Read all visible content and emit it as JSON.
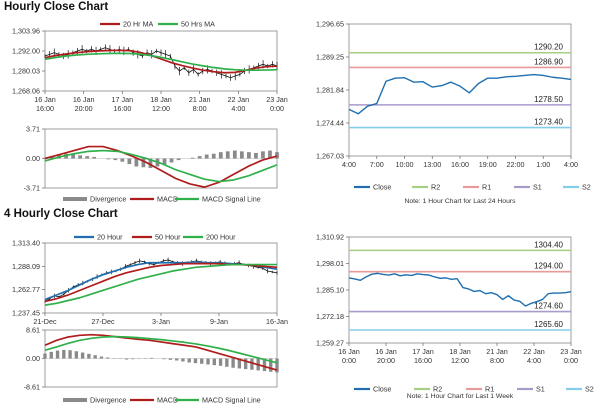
{
  "sections": [
    {
      "title": "Hourly Close Chart"
    },
    {
      "title": "4 Hourly Close Chart"
    }
  ],
  "colors": {
    "red": "#b01c1c",
    "green": "#2fb04a",
    "black": "#111111",
    "gray": "#8a8a8a",
    "blue": "#1f6fb0",
    "r2": "#a6cf82",
    "r1": "#e89a9a",
    "s1": "#a89ac9",
    "s2": "#86cdeb"
  },
  "chart_data": [
    {
      "id": "h_price",
      "type": "line",
      "ylim": [
        1268.06,
        1303.96
      ],
      "yticks": [
        "1,303.96",
        "1,292.00",
        "1,280.03",
        "1,268.06"
      ],
      "xticks": [
        "16 Jan\n16:00",
        "16 Jan\n20:00",
        "17 Jan\n16:00",
        "18 Jan\n12:00",
        "21 Jan\n8:00",
        "22 Jan\n4:00",
        "23 Jan\n0:00"
      ],
      "legend": [
        "20 Hr MA",
        "50 Hrs MA"
      ],
      "series": [
        {
          "name": "Price",
          "color": "black",
          "kind": "ohlc",
          "values": [
            1289,
            1290,
            1291,
            1290,
            1289,
            1290,
            1291,
            1292,
            1293,
            1292,
            1293,
            1292,
            1293,
            1294,
            1293,
            1292,
            1293,
            1292,
            1293,
            1291,
            1290,
            1289,
            1291,
            1290,
            1292,
            1291,
            1290,
            1289,
            1283,
            1280,
            1282,
            1279,
            1281,
            1278,
            1280,
            1281,
            1280,
            1279,
            1278,
            1277,
            1276,
            1277,
            1278,
            1280,
            1281,
            1282,
            1283,
            1284,
            1283,
            1284,
            1283
          ]
        },
        {
          "name": "20 Hr MA",
          "color": "red",
          "kind": "line",
          "values": [
            1288,
            1289.3,
            1290.2,
            1291,
            1291.6,
            1292,
            1292.3,
            1292.4,
            1292.2,
            1291.2,
            1289.5,
            1287.2,
            1285,
            1283.3,
            1281.8,
            1280.5,
            1279.6,
            1279,
            1279.2,
            1280.4,
            1281.8,
            1282.6,
            1282.9
          ]
        },
        {
          "name": "50 Hrs MA",
          "color": "green",
          "kind": "line",
          "values": [
            1287,
            1288.1,
            1289,
            1289.6,
            1290,
            1290.3,
            1290.5,
            1290.6,
            1290.5,
            1290.1,
            1289.3,
            1288.2,
            1286.9,
            1285.5,
            1284.2,
            1283.1,
            1282.1,
            1281.3,
            1280.8,
            1280.5,
            1280.5,
            1280.6,
            1280.8
          ]
        }
      ]
    },
    {
      "id": "h_macd",
      "type": "line",
      "ylim": [
        -3.71,
        3.71
      ],
      "yticks": [
        "3.71",
        "0.00",
        "-3.71"
      ],
      "legend": [
        "Divergence",
        "MACD",
        "MACD Signal Line"
      ],
      "series": [
        {
          "name": "Divergence",
          "color": "gray",
          "kind": "bars",
          "values": [
            0.1,
            0.3,
            0.5,
            0.6,
            0.5,
            0.4,
            0.3,
            0.2,
            0.0,
            -0.1,
            -0.2,
            -0.4,
            -0.7,
            -1.0,
            -1.1,
            -1.2,
            -1.0,
            -0.8,
            -0.5,
            -0.2,
            0.0,
            0.1,
            0.3,
            0.5,
            0.6,
            0.8,
            0.9,
            1.0,
            0.9,
            0.8,
            0.7,
            0.9,
            1.0,
            0.8
          ]
        },
        {
          "name": "MACD",
          "color": "red",
          "kind": "line",
          "values": [
            0.0,
            0.5,
            1.0,
            1.5,
            1.5,
            1.0,
            0.3,
            -0.5,
            -1.5,
            -2.5,
            -3.2,
            -3.6,
            -3.0,
            -2.0,
            -1.0,
            -0.2,
            0.3
          ]
        },
        {
          "name": "MACD Signal Line",
          "color": "green",
          "kind": "line",
          "values": [
            -0.3,
            0.2,
            0.6,
            0.9,
            1.0,
            0.9,
            0.5,
            0.0,
            -0.6,
            -1.4,
            -2.0,
            -2.6,
            -2.9,
            -2.7,
            -2.2,
            -1.5,
            -0.8
          ]
        }
      ]
    },
    {
      "id": "h_right",
      "type": "line",
      "ylim": [
        1267.03,
        1296.65
      ],
      "yticks": [
        "1,296.65",
        "1,289.25",
        "1,281.84",
        "1,274.44",
        "1,267.03"
      ],
      "xticks": [
        "4:00",
        "7:00",
        "10:00",
        "13:00",
        "16:00",
        "19:00",
        "22:00",
        "1:00",
        "4:00"
      ],
      "legend": [
        "Close",
        "R2",
        "R1",
        "S1",
        "S2"
      ],
      "note": "Note: 1 Hour Chart for Last 24 Hours",
      "levels": [
        {
          "name": "R2",
          "value": 1290.2,
          "label": "1290.20",
          "color": "r2"
        },
        {
          "name": "R1",
          "value": 1286.9,
          "label": "1286.90",
          "color": "r1"
        },
        {
          "name": "S1",
          "value": 1278.5,
          "label": "1278.50",
          "color": "s1"
        },
        {
          "name": "S2",
          "value": 1273.4,
          "label": "1273.40",
          "color": "s2"
        }
      ],
      "series": [
        {
          "name": "Close",
          "color": "blue",
          "kind": "line",
          "values": [
            1277.5,
            1276.5,
            1278.2,
            1278.8,
            1283.8,
            1284.5,
            1284.6,
            1283.6,
            1283.7,
            1282.5,
            1282.8,
            1283.6,
            1282.7,
            1281.2,
            1283.3,
            1284.5,
            1284.5,
            1284.8,
            1284.9,
            1285.1,
            1285.3,
            1285.1,
            1284.7,
            1284.5,
            1284.2
          ]
        }
      ]
    },
    {
      "id": "h4_price",
      "type": "line",
      "ylim": [
        1237.45,
        1313.4
      ],
      "yticks": [
        "1,313.40",
        "1,288.09",
        "1,262.77",
        "1,237.45"
      ],
      "xticks": [
        "21-Dec",
        "27-Dec",
        "3-Jan",
        "9-Jan",
        "16-Jan"
      ],
      "legend": [
        "20 Hour",
        "50 Hour",
        "200 Hour"
      ],
      "series": [
        {
          "name": "Price",
          "color": "black",
          "kind": "ohlc",
          "values": [
            1250,
            1253,
            1256,
            1255,
            1258,
            1262,
            1266,
            1268,
            1270,
            1272,
            1274,
            1277,
            1279,
            1281,
            1282,
            1283,
            1285,
            1288,
            1290,
            1292,
            1294,
            1293,
            1291,
            1290,
            1292,
            1294,
            1295,
            1293,
            1292,
            1291,
            1292,
            1293,
            1294,
            1293,
            1292,
            1291,
            1292,
            1293,
            1291,
            1290,
            1291,
            1292,
            1290,
            1289,
            1288,
            1287,
            1286,
            1283,
            1282,
            1281
          ]
        },
        {
          "name": "20 Hour",
          "color": "blue",
          "kind": "line",
          "values": [
            1252,
            1257,
            1262,
            1268,
            1274,
            1279,
            1283,
            1287,
            1290,
            1292,
            1292,
            1292,
            1292,
            1293,
            1292,
            1292,
            1291,
            1290,
            1289,
            1287,
            1285
          ]
        },
        {
          "name": "50 Hour",
          "color": "red",
          "kind": "line",
          "values": [
            1250,
            1253,
            1257,
            1262,
            1267,
            1272,
            1277,
            1281,
            1284,
            1287,
            1289,
            1290,
            1291,
            1291,
            1291,
            1291,
            1290,
            1290,
            1289,
            1288,
            1287
          ]
        },
        {
          "name": "200 Hour",
          "color": "green",
          "kind": "line",
          "values": [
            1246,
            1248,
            1251,
            1254,
            1258,
            1262,
            1266,
            1270,
            1274,
            1277,
            1280,
            1283,
            1285,
            1287,
            1288,
            1289,
            1290,
            1290,
            1290,
            1290,
            1290
          ]
        }
      ]
    },
    {
      "id": "h4_macd",
      "type": "line",
      "ylim": [
        -8.61,
        8.61
      ],
      "yticks": [
        "8.61",
        "0.00",
        "-8.61"
      ],
      "legend": [
        "Divergence",
        "MACD",
        "MACD Signal Line"
      ],
      "series": [
        {
          "name": "Divergence",
          "color": "gray",
          "kind": "bars",
          "values": [
            1.5,
            2.0,
            2.4,
            2.6,
            2.5,
            2.2,
            1.8,
            1.4,
            1.0,
            0.6,
            0.3,
            0.1,
            -0.1,
            -0.3,
            -0.2,
            -0.1,
            0.1,
            0.2,
            0.0,
            -0.2,
            -0.4,
            -0.6,
            -0.9,
            -1.2,
            -1.4,
            -1.6,
            -1.8,
            -2.0,
            -2.2,
            -2.5,
            -2.8,
            -3.0,
            -3.2,
            -3.4,
            -3.6,
            -3.8,
            -4.0,
            -4.2
          ]
        },
        {
          "name": "MACD",
          "color": "red",
          "kind": "line",
          "values": [
            4.0,
            5.5,
            6.5,
            7.0,
            7.2,
            7.0,
            6.6,
            6.2,
            5.8,
            5.5,
            5.0,
            4.5,
            4.0,
            3.5,
            2.5,
            1.5,
            0.5,
            -0.5,
            -1.5,
            -2.5,
            -3.5
          ]
        },
        {
          "name": "MACD Signal Line",
          "color": "green",
          "kind": "line",
          "values": [
            2.5,
            3.5,
            4.6,
            5.5,
            6.1,
            6.5,
            6.6,
            6.5,
            6.3,
            6.0,
            5.7,
            5.3,
            4.9,
            4.4,
            3.8,
            3.1,
            2.3,
            1.4,
            0.5,
            -0.4,
            -1.3
          ]
        }
      ]
    },
    {
      "id": "h4_right",
      "type": "line",
      "ylim": [
        1259.27,
        1310.92
      ],
      "yticks": [
        "1,310.92",
        "1,298.01",
        "1,285.10",
        "1,272.18",
        "1,259.27"
      ],
      "xticks": [
        "16 Jan\n0:00",
        "16 Jan\n20:00",
        "17 Jan\n16:00",
        "18 Jan\n12:00",
        "21 Jan\n8:00",
        "22 Jan\n4:00",
        "23 Jan\n0:00"
      ],
      "legend": [
        "Close",
        "R2",
        "R1",
        "S1",
        "S2"
      ],
      "note": "Note: 1 Hour Chart for Last 1 Week",
      "levels": [
        {
          "name": "R2",
          "value": 1304.4,
          "label": "1304.40",
          "color": "r2"
        },
        {
          "name": "R1",
          "value": 1294.0,
          "label": "1294.00",
          "color": "r1"
        },
        {
          "name": "S1",
          "value": 1274.6,
          "label": "1274.60",
          "color": "s1"
        },
        {
          "name": "S2",
          "value": 1265.6,
          "label": "1265.60",
          "color": "s2"
        }
      ],
      "series": [
        {
          "name": "Close",
          "color": "blue",
          "kind": "line",
          "values": [
            1291,
            1290.5,
            1289.8,
            1291.5,
            1292.8,
            1293.2,
            1292.7,
            1292.4,
            1293,
            1292,
            1292.5,
            1292.2,
            1293,
            1292.6,
            1292.4,
            1291.5,
            1290.8,
            1291,
            1290.3,
            1290.6,
            1286.3,
            1285.6,
            1284.4,
            1284.8,
            1283.3,
            1283.8,
            1282.8,
            1280.5,
            1282.3,
            1280.2,
            1279.6,
            1277.3,
            1278.6,
            1279.4,
            1280.5,
            1283.3,
            1283.6,
            1283.6,
            1283.8,
            1284.3
          ]
        }
      ]
    }
  ]
}
